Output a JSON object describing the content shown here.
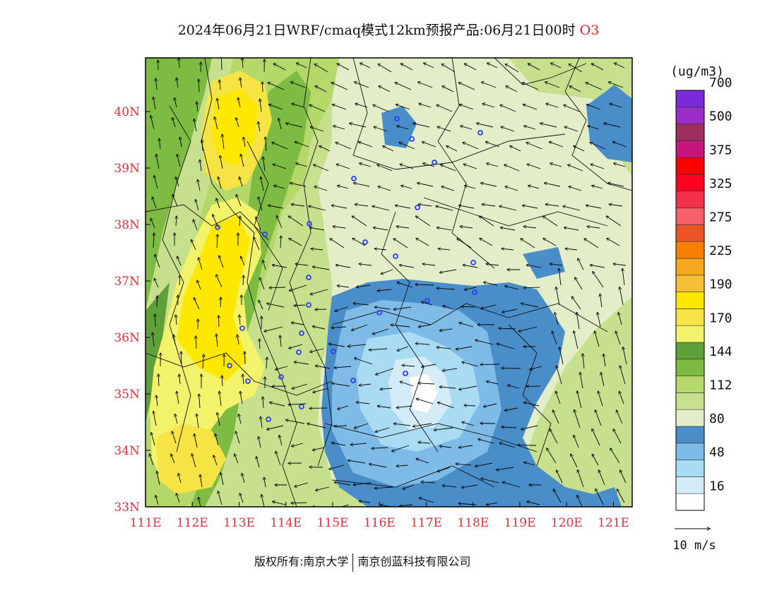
{
  "title": "2024年06月21日WRF/cmaq模式12km预报产品:06月21日00时",
  "pollutant": "O3",
  "legend": {
    "unit": "(ug/m3)",
    "colors": [
      "#ffffff",
      "#d4ecf7",
      "#a9dcf2",
      "#7ebbe6",
      "#4a8ec9",
      "#e3edc7",
      "#c6e08e",
      "#b5d86b",
      "#7dbb43",
      "#5fa039",
      "#f2f26b",
      "#f5e443",
      "#ffe800",
      "#f5c036",
      "#f7a61f",
      "#f67f04",
      "#ec5425",
      "#f7606a",
      "#f2304a",
      "#ff0022",
      "#ff0000",
      "#c8147d",
      "#9e2e5e",
      "#9a2cc8",
      "#7a2ad8"
    ],
    "labels": [
      {
        "text": "16",
        "index": 2
      },
      {
        "text": "48",
        "index": 4
      },
      {
        "text": "80",
        "index": 6
      },
      {
        "text": "112",
        "index": 8
      },
      {
        "text": "144",
        "index": 10
      },
      {
        "text": "170",
        "index": 12
      },
      {
        "text": "190",
        "index": 14
      },
      {
        "text": "225",
        "index": 16
      },
      {
        "text": "275",
        "index": 18
      },
      {
        "text": "325",
        "index": 20
      },
      {
        "text": "375",
        "index": 22
      },
      {
        "text": "500",
        "index": 24
      },
      {
        "text": "700",
        "index": 26
      }
    ],
    "wind_ref": "10 m/s"
  },
  "axes": {
    "x_ticks": [
      "111E",
      "112E",
      "113E",
      "114E",
      "115E",
      "116E",
      "117E",
      "118E",
      "119E",
      "120E",
      "121E"
    ],
    "y_ticks": [
      "33N",
      "34N",
      "35N",
      "36N",
      "37N",
      "38N",
      "39N",
      "40N"
    ],
    "lon_range": [
      111,
      121.4
    ],
    "lat_range": [
      33,
      40.95
    ],
    "tick_color": "#e0303c"
  },
  "footer": {
    "copyright": "版权所有:南京大学",
    "company": "南京创蓝科技有限公司"
  }
}
